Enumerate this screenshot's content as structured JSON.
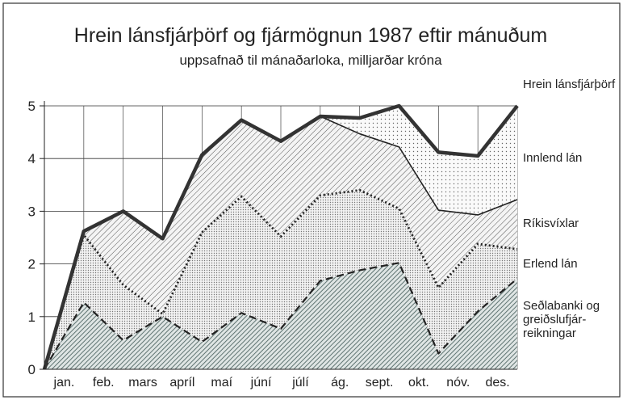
{
  "chart_data": {
    "type": "stacked_area",
    "title": "Hrein lánsfjárþörf og fjármögnun 1987 eftir mánuðum",
    "subtitle": "uppsafnað til mánaðarloka, milljarðar króna",
    "total_label": "Hrein lánsfjárþörf",
    "categories": [
      null,
      "jan.",
      "feb.",
      "mars",
      "apríl",
      "maí",
      "júní",
      "júlí",
      "ág.",
      "sept.",
      "okt.",
      "nóv.",
      "des."
    ],
    "ylim": [
      0,
      5
    ],
    "yticks": [
      0,
      1,
      2,
      3,
      4,
      5
    ],
    "grid": true,
    "series": [
      {
        "name": "Seðlabanki og greiðslufjár-reikningar",
        "color": "#5f7472",
        "values": [
          0,
          1.27,
          0.55,
          1.0,
          0.52,
          1.07,
          0.77,
          1.68,
          1.88,
          2.02,
          0.3,
          1.1,
          1.72
        ]
      },
      {
        "name": "Erlend lán",
        "color": "#777777",
        "values": [
          0,
          1.28,
          1.05,
          0.05,
          2.08,
          2.21,
          1.75,
          1.62,
          1.52,
          1.03,
          1.25,
          1.28,
          0.56
        ]
      },
      {
        "name": "Ríkisvíxlar",
        "color": "#555555",
        "values": [
          0,
          0.07,
          1.4,
          1.43,
          1.47,
          1.45,
          1.81,
          1.5,
          1.07,
          1.17,
          1.47,
          0.55,
          0.94
        ]
      },
      {
        "name": "Innlend lán",
        "color": "#666666",
        "values": [
          0,
          0,
          0,
          0,
          0,
          0,
          0,
          0,
          0.3,
          0.78,
          1.1,
          1.12,
          1.78
        ]
      }
    ]
  }
}
